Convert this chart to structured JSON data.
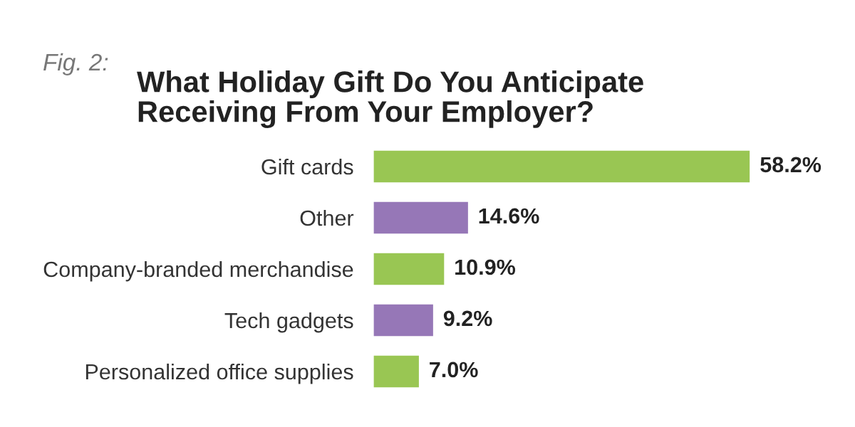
{
  "chart_data": {
    "type": "bar",
    "orientation": "horizontal",
    "title": "What Holiday Gift Do You Anticipate\nReceiving From Your Employer?",
    "annotations": [
      "Fig. 2:"
    ],
    "categories": [
      "Gift cards",
      "Other",
      "Company-branded merchandise",
      "Tech gadgets",
      "Personalized office supplies"
    ],
    "values": [
      58.2,
      14.6,
      10.9,
      9.2,
      7.0
    ],
    "colors": [
      "#99c653",
      "#9677b7",
      "#99c653",
      "#9677b7",
      "#99c653"
    ],
    "value_labels": [
      "58.2%",
      "14.6%",
      "10.9%",
      "9.2%",
      "7.0%"
    ],
    "grid": false,
    "legend": false
  }
}
